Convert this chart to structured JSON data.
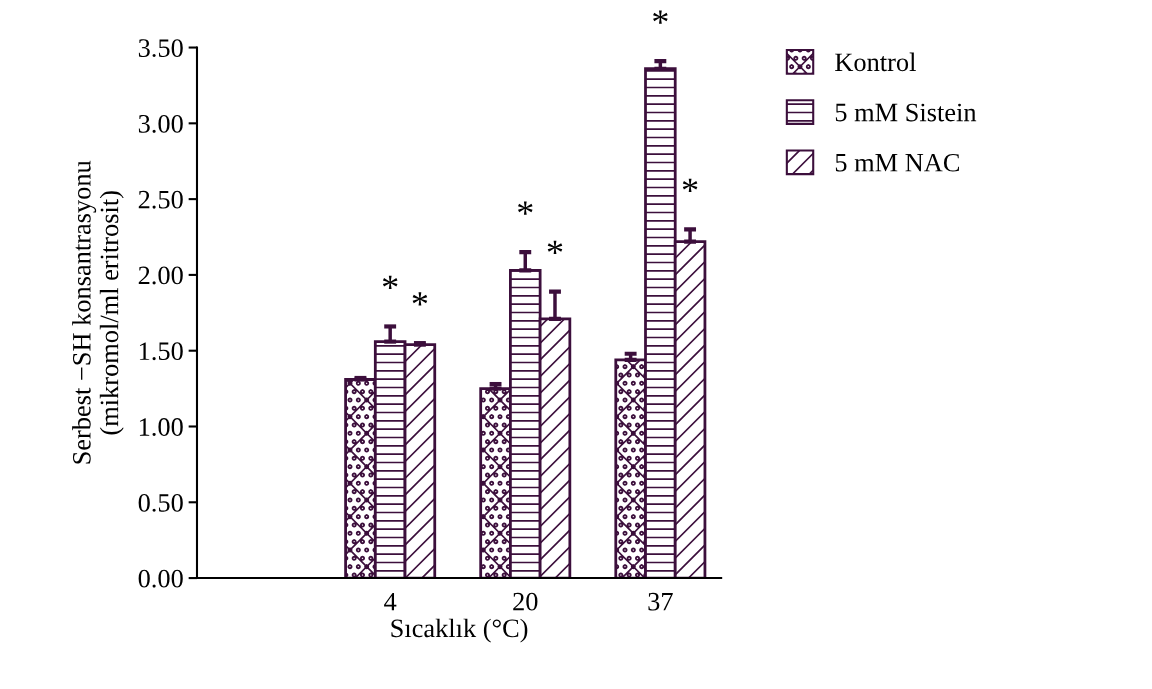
{
  "chart_data": {
    "type": "bar",
    "xlabel": "Sıcaklık (°C)",
    "ylabel": "Serbest −SH konsantrasyonu\n(mikromol/ml eritrosit)",
    "categories": [
      "4",
      "20",
      "37"
    ],
    "series": [
      {
        "name": "Kontrol",
        "color": "#3c0f3c",
        "values": [
          1.31,
          1.25,
          1.44
        ],
        "errors": [
          [
            1.31,
            1.32
          ],
          [
            1.25,
            1.28
          ],
          [
            1.44,
            1.48
          ]
        ]
      },
      {
        "name": "5 mM Sistein",
        "color": "#3c0f3c",
        "values": [
          1.56,
          2.03,
          3.36
        ],
        "errors": [
          [
            1.56,
            1.66
          ],
          [
            2.03,
            2.15
          ],
          [
            3.36,
            3.41
          ]
        ]
      },
      {
        "name": "5 mM NAC",
        "color": "#3c0f3c",
        "values": [
          1.54,
          1.71,
          2.22
        ],
        "errors": [
          [
            1.54,
            1.55
          ],
          [
            1.71,
            1.89
          ],
          [
            2.22,
            2.3
          ]
        ]
      }
    ],
    "ylim": [
      0,
      3.5
    ],
    "yticks": [
      {
        "value": 0,
        "label": "0.00"
      },
      {
        "value": 0.5,
        "label": "0.50"
      },
      {
        "value": 1,
        "label": "1.00"
      },
      {
        "value": 1.5,
        "label": "1.50"
      },
      {
        "value": 2,
        "label": "2.00"
      },
      {
        "value": 2.5,
        "label": "2.50"
      },
      {
        "value": 3,
        "label": "3.00"
      },
      {
        "value": 3.5,
        "label": "3.50"
      }
    ],
    "annotations": [
      "*",
      "*",
      "*",
      "*",
      "*",
      "*"
    ],
    "grid": false,
    "legend": "top right"
  }
}
